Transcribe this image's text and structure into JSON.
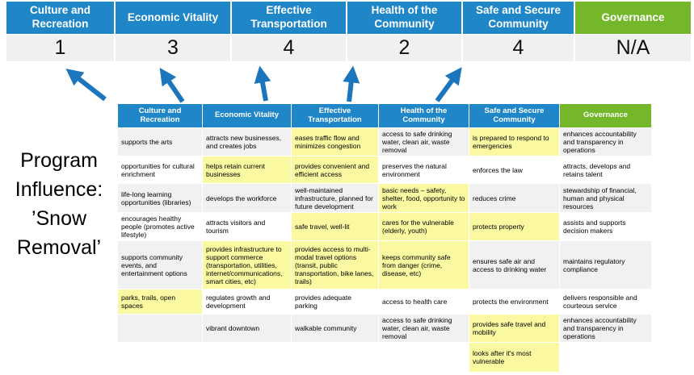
{
  "title": {
    "lines": [
      "Program",
      "Influence:",
      "’Snow",
      "Removal’"
    ],
    "full": "Program Influence: ’Snow Removal’"
  },
  "colors": {
    "header_blue": "#1F86C8",
    "header_green": "#74B72A",
    "highlight_yellow": "#FBF8A2",
    "arrow_blue": "#1B76BE",
    "score_band_gray": "#F0F0F0",
    "row_band_gray": "#F1F1F1"
  },
  "summary": {
    "columns": [
      {
        "label": "Culture and Recreation",
        "score": "1"
      },
      {
        "label": "Economic Vitality",
        "score": "3"
      },
      {
        "label": "Effective Transportation",
        "score": "4"
      },
      {
        "label": "Health of the Community",
        "score": "2"
      },
      {
        "label": "Safe and Secure Community",
        "score": "4"
      },
      {
        "label": "Governance",
        "score": "N/A"
      }
    ]
  },
  "arrows": [
    "up-left-arrow",
    "up-left-arrow",
    "up-arrow",
    "up-arrow",
    "up-right-arrow"
  ],
  "matrix": {
    "headers": [
      "Culture and Recreation",
      "Economic Vitality",
      "Effective Transportation",
      "Health of the Community",
      "Safe and Secure Community",
      "Governance"
    ],
    "rows": [
      [
        {
          "t": "supports the arts",
          "h": false
        },
        {
          "t": "attracts new businesses, and creates jobs",
          "h": false
        },
        {
          "t": "eases traffic flow and minimizes congestion",
          "h": true
        },
        {
          "t": "access to safe drinking water, clean air, waste removal",
          "h": false
        },
        {
          "t": "is prepared to respond to emergencies",
          "h": true
        },
        {
          "t": "enhances accountability and transparency in operations",
          "h": false
        }
      ],
      [
        {
          "t": "opportunities for cultural enrichment",
          "h": false
        },
        {
          "t": "helps retain current businesses",
          "h": true
        },
        {
          "t": "provides convenient and efficient access",
          "h": true
        },
        {
          "t": "preserves the natural environment",
          "h": false
        },
        {
          "t": "enforces the law",
          "h": false
        },
        {
          "t": "attracts, develops and retains talent",
          "h": false
        }
      ],
      [
        {
          "t": "life-long learning opportunities (libraries)",
          "h": false
        },
        {
          "t": "develops the workforce",
          "h": false
        },
        {
          "t": "well-maintained infrastructure, planned for future development",
          "h": false
        },
        {
          "t": "basic needs – safety, shelter, food, opportunity to work",
          "h": true
        },
        {
          "t": "reduces crime",
          "h": false
        },
        {
          "t": "stewardship of financial, human and physical resources",
          "h": false
        }
      ],
      [
        {
          "t": "encourages healthy people (promotes active lifestyle)",
          "h": false
        },
        {
          "t": "attracts visitors and tourism",
          "h": false
        },
        {
          "t": "safe travel, well-lit",
          "h": true
        },
        {
          "t": "cares for the vulnerable (elderly, youth)",
          "h": true
        },
        {
          "t": "protects property",
          "h": true
        },
        {
          "t": "assists and supports decision makers",
          "h": false
        }
      ],
      [
        {
          "t": "supports community events, and entertainment options",
          "h": false
        },
        {
          "t": "provides infrastructure to support commerce (transportation, utilities, internet/communications, smart cities, etc)",
          "h": true
        },
        {
          "t": "provides access to multi-modal travel options (transit, public transportation, bike lanes, trails)",
          "h": true
        },
        {
          "t": "keeps community safe from danger (crime, disease, etc)",
          "h": true
        },
        {
          "t": "ensures safe air and access to drinking water",
          "h": false
        },
        {
          "t": "maintains regulatory compliance",
          "h": false
        }
      ],
      [
        {
          "t": "parks, trails, open spaces",
          "h": true
        },
        {
          "t": "regulates growth and development",
          "h": false
        },
        {
          "t": "provides adequate parking",
          "h": false
        },
        {
          "t": "access to health care",
          "h": false
        },
        {
          "t": "protects the environment",
          "h": false
        },
        {
          "t": "delivers responsible and courteous service",
          "h": false
        }
      ],
      [
        {
          "t": "",
          "h": false
        },
        {
          "t": "vibrant downtown",
          "h": false
        },
        {
          "t": "walkable community",
          "h": false
        },
        {
          "t": "access to safe drinking water, clean air, waste removal",
          "h": false
        },
        {
          "t": "provides safe travel and mobility",
          "h": true
        },
        {
          "t": "enhances accountability and transparency in operations",
          "h": false
        }
      ],
      [
        {
          "t": "",
          "h": false
        },
        {
          "t": "",
          "h": false
        },
        {
          "t": "",
          "h": false
        },
        {
          "t": "",
          "h": false
        },
        {
          "t": "looks after it's most vulnerable",
          "h": true
        },
        {
          "t": "",
          "h": false
        }
      ]
    ]
  }
}
